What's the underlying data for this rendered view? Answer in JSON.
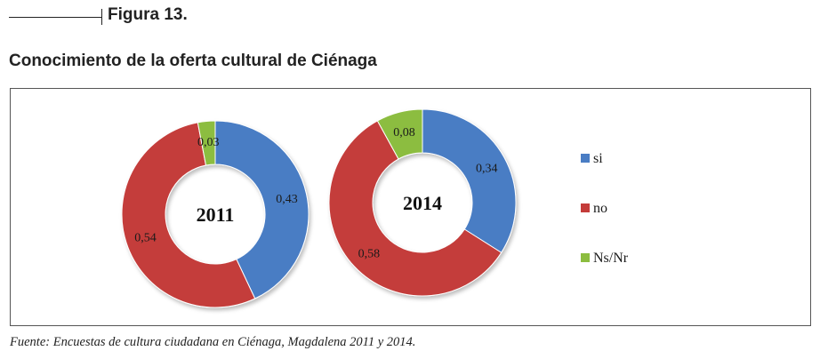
{
  "figure_label": "Figura 13.",
  "chart_title": "Conocimiento de la oferta cultural de Ciénaga",
  "source_note": "Fuente: Encuestas de cultura ciudadana en Ciénaga, Magdalena 2011 y 2014.",
  "colors": {
    "si": "#4a7dc4",
    "no": "#c43c3a",
    "nsnr": "#8cbd3f"
  },
  "chart_data": {
    "type": "donut",
    "categories": [
      "si",
      "no",
      "Ns/Nr"
    ],
    "legend_position": "right",
    "charts": [
      {
        "label": "2011",
        "values": [
          0.43,
          0.54,
          0.03
        ],
        "value_labels": [
          "0,43",
          "0,54",
          "0,03"
        ]
      },
      {
        "label": "2014",
        "values": [
          0.34,
          0.58,
          0.08
        ],
        "value_labels": [
          "0,34",
          "0,58",
          "0,08"
        ]
      }
    ]
  }
}
